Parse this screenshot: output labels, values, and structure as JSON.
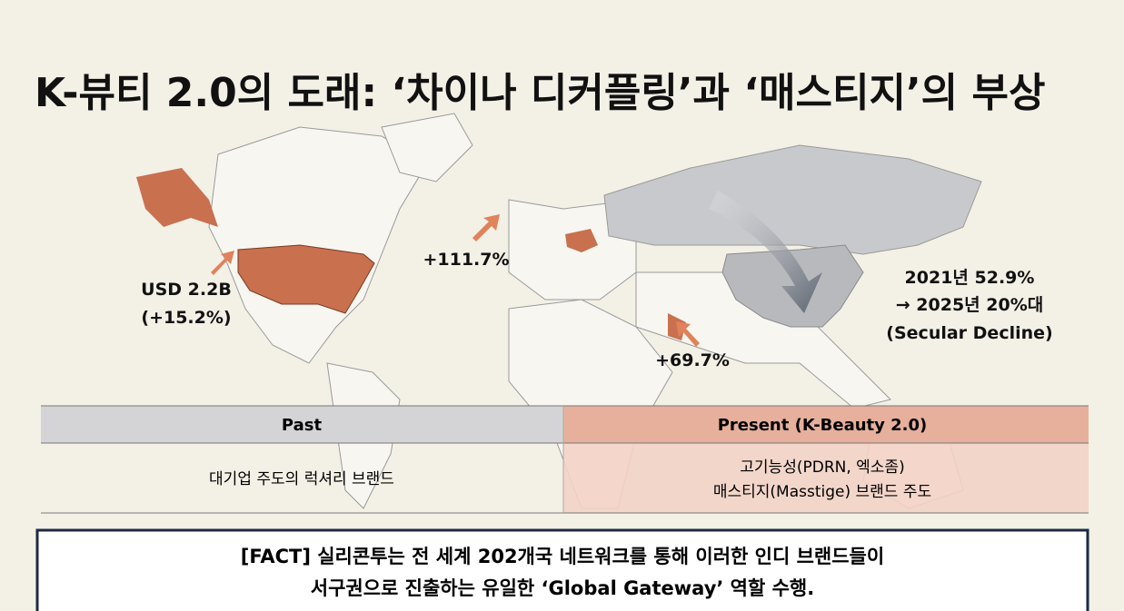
{
  "title": "K-뷰티 2.0의 도래: ‘차이나 디커플링’과 ‘매스티지’의 부상",
  "map": {
    "annotations": [
      {
        "lines": [
          "USD 2.2B",
          "(+15.2%)"
        ]
      },
      {
        "lines": [
          "+111.7%"
        ]
      },
      {
        "lines": [
          "+69.7%"
        ]
      },
      {
        "lines": [
          "2021년 52.9%",
          "→ 2025년 20%대",
          "(Secular Decline)"
        ]
      }
    ]
  },
  "table": {
    "headers": [
      "Past",
      "Present (K-Beauty 2.0)"
    ],
    "rows": [
      [
        [
          "대기업 주도의 럭셔리 브랜드"
        ],
        [
          "고기능성(PDRN, 엑소좀)",
          "매스티지(Masstige) 브랜드 주도"
        ]
      ]
    ]
  },
  "fact": {
    "lines": [
      "[FACT] 실리콘투는 전 세계 202개국 네트워크를 통해 이러한 인디 브랜드들이",
      "서구권으로 진출하는 유일한 ‘Global Gateway’ 역할 수행."
    ]
  }
}
